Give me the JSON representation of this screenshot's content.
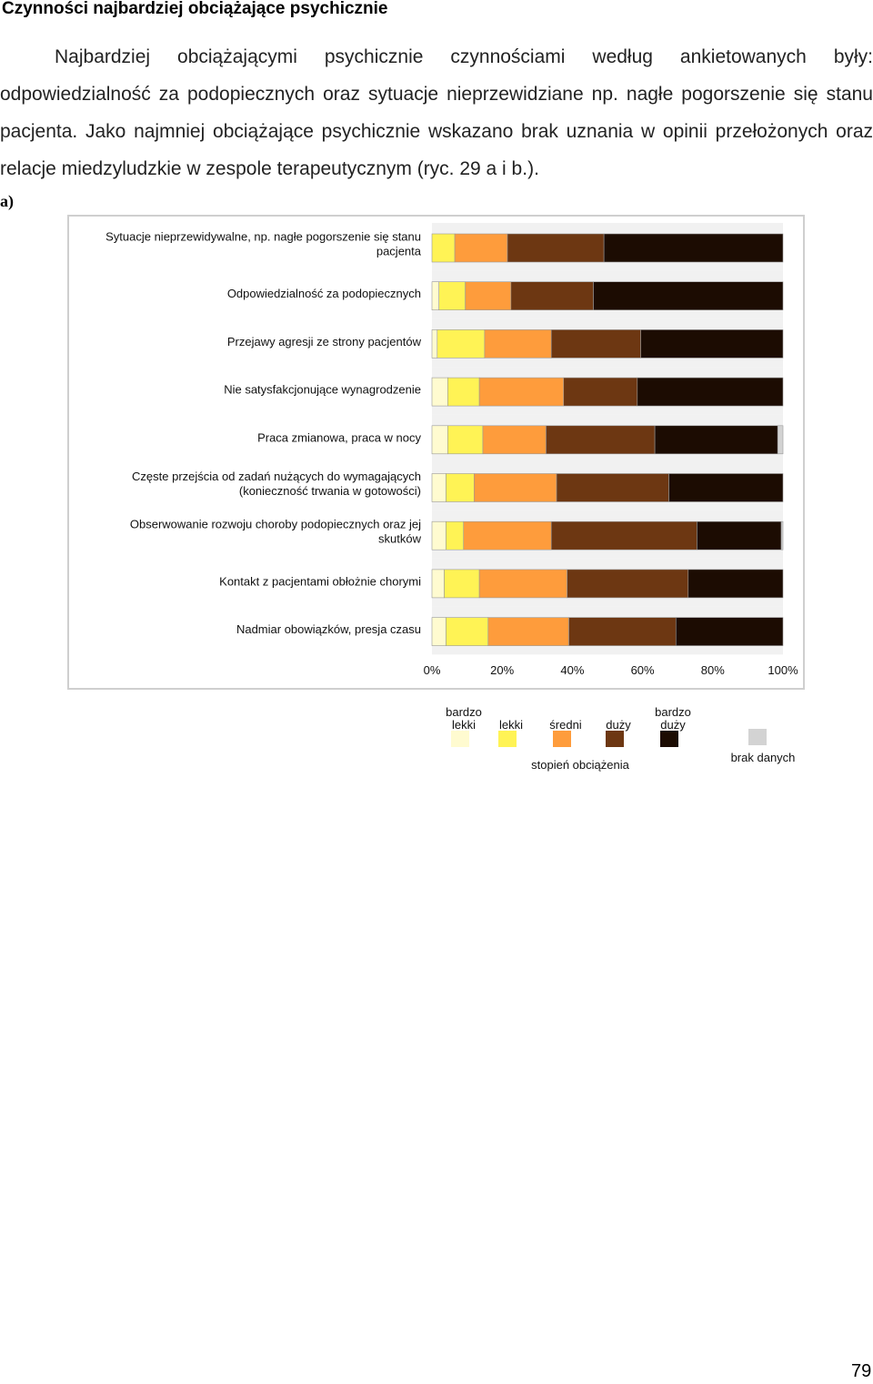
{
  "heading": "Czynności najbardziej obciążające psychicznie",
  "intro": "Najbardziej obciążającymi psychicznie czynnościami według ankietowanych były: odpowiedzialność za podopiecznych oraz sytuacje nieprzewidziane np. nagłe pogorszenie się stanu pacjenta. Jako najmniej obciążające psychicznie wskazano brak uznania w opinii przełożonych oraz relacje miedzyludzkie w zespole terapeutycznym (ryc. 29 a i b.).",
  "panel_label": "a)",
  "page_number": "79",
  "chart_data": {
    "type": "bar",
    "orientation": "horizontal",
    "stacked": "percent",
    "categories": [
      [
        "Sytuacje nieprzewidywalne, np. nagłe pogorszenie się stanu",
        "pacjenta"
      ],
      [
        "Odpowiedzialność za podopiecznych"
      ],
      [
        "Przejawy agresji ze strony pacjentów"
      ],
      [
        "Nie satysfakcjonujące wynagrodzenie"
      ],
      [
        "Praca zmianowa, praca w nocy"
      ],
      [
        "Częste przejścia od zadań nużących do wymagających",
        "(konieczność trwania w gotowości)"
      ],
      [
        "Obserwowanie rozwoju choroby podopiecznych oraz jej",
        "skutków"
      ],
      [
        "Kontakt z pacjentami obłożnie chorymi"
      ],
      [
        "Nadmiar obowiązków, presja czasu"
      ]
    ],
    "series": [
      {
        "name": "bardzo lekki",
        "legend_lines": [
          "bardzo",
          "lekki"
        ],
        "color": "#fffbd0",
        "values": [
          0,
          2,
          1.5,
          4.5,
          4.5,
          4,
          4,
          3.5,
          4
        ]
      },
      {
        "name": "lekki",
        "legend_lines": [
          "lekki"
        ],
        "color": "#fff355",
        "values": [
          6.5,
          7.5,
          13.5,
          9,
          10,
          8,
          5,
          10,
          12
        ]
      },
      {
        "name": "średni",
        "legend_lines": [
          "średni"
        ],
        "color": "#fe9c3c",
        "values": [
          15,
          13,
          19,
          24,
          18,
          23.5,
          25,
          25,
          23
        ]
      },
      {
        "name": "duży",
        "legend_lines": [
          "duży"
        ],
        "color": "#6d3712",
        "values": [
          27.5,
          23.5,
          25.5,
          21,
          31,
          32,
          41.5,
          34.5,
          30.5
        ]
      },
      {
        "name": "bardzo duży",
        "legend_lines": [
          "bardzo",
          "duży"
        ],
        "color": "#1c0c02",
        "values": [
          51,
          54,
          40.5,
          41.5,
          35,
          32.5,
          24,
          27,
          30.5
        ]
      },
      {
        "name": "brak danych",
        "legend_lines": [
          "brak danych"
        ],
        "color": "#d3d3d3",
        "values": [
          0,
          0,
          0,
          0,
          1.5,
          0,
          0.5,
          0,
          0
        ]
      }
    ],
    "xticks": [
      "0%",
      "20%",
      "40%",
      "60%",
      "80%",
      "100%"
    ],
    "xlim": [
      0,
      100
    ],
    "legend_title": "stopień obciążenia",
    "legend_position": "bottom",
    "grid": false
  }
}
